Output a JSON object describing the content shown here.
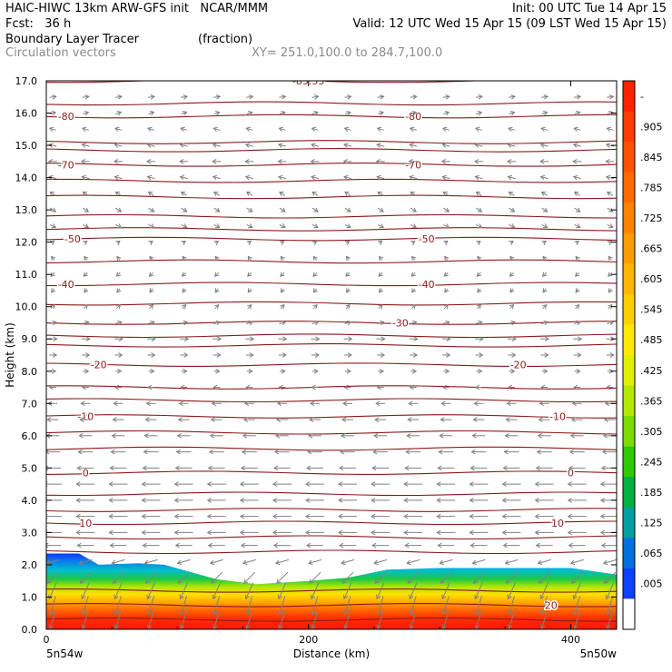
{
  "header": {
    "line1_left": "HAIC-HIWC 13km ARW-GFS init   NCAR/MMM",
    "line1_right": "Init: 00 UTC Tue 14 Apr 15",
    "line2_left": "Fcst:   36 h",
    "line2_right": "Valid: 12 UTC Wed 15 Apr 15 (09 LST Wed 15 Apr 15)",
    "field_name": "Boundary Layer Tracer",
    "field_units": "(fraction)",
    "vector_name": "Circulation vectors",
    "xy_label": "XY= 251.0,100.0 to 284.7,100.0"
  },
  "chart_data": {
    "type": "heatmap",
    "title": "Boundary Layer Tracer",
    "units": "(fraction)",
    "xlabel": "Distance (km)",
    "ylabel": "Height (km)",
    "xlim": [
      0,
      435
    ],
    "ylim": [
      0,
      17
    ],
    "xticks": [
      "0",
      "200",
      "400"
    ],
    "yticks": [
      "0.0",
      "1.0",
      "2.0",
      "3.0",
      "4.0",
      "5.0",
      "6.0",
      "7.0",
      "8.0",
      "9.0",
      "10.0",
      "11.0",
      "12.0",
      "13.0",
      "14.0",
      "15.0",
      "16.0",
      "17.0"
    ],
    "x_end_labels": {
      "left": "5n54w",
      "right": "5n50w"
    },
    "colorbar": {
      "labels": [
        "-",
        ".905",
        ".845",
        ".785",
        ".725",
        ".665",
        ".605",
        ".545",
        ".485",
        ".425",
        ".365",
        ".305",
        ".245",
        ".185",
        ".125",
        ".065",
        ".005"
      ],
      "colors": [
        "#ff2200",
        "#ff3a00",
        "#ff5200",
        "#ff6a00",
        "#ff8200",
        "#ff9c00",
        "#ffb600",
        "#ffd000",
        "#ffea00",
        "#e0f000",
        "#b4e800",
        "#7cdc00",
        "#30c800",
        "#00b040",
        "#00a0a0",
        "#0070e0",
        "#1040ff",
        "#ffffff"
      ]
    },
    "tracer_top_km": [
      [
        0,
        2.35
      ],
      [
        25,
        2.35
      ],
      [
        40,
        2.0
      ],
      [
        70,
        2.05
      ],
      [
        90,
        2.0
      ],
      [
        130,
        1.55
      ],
      [
        160,
        1.4
      ],
      [
        200,
        1.5
      ],
      [
        230,
        1.6
      ],
      [
        260,
        1.85
      ],
      [
        300,
        1.9
      ],
      [
        350,
        1.9
      ],
      [
        400,
        1.9
      ],
      [
        435,
        1.7
      ]
    ],
    "temperature_contours": [
      {
        "label": "10",
        "height_km": 3.3,
        "label_positions_km": [
          30,
          390
        ]
      },
      {
        "label": "0",
        "height_km": 4.85,
        "label_positions_km": [
          30,
          400
        ]
      },
      {
        "label": "-10",
        "height_km": 6.6,
        "label_positions_km": [
          30,
          390
        ]
      },
      {
        "label": "-20",
        "height_km": 8.2,
        "label_positions_km": [
          40,
          360
        ]
      },
      {
        "label": "-30",
        "height_km": 9.5,
        "label_positions_km": [
          270
        ]
      },
      {
        "label": "-40",
        "height_km": 10.7,
        "label_positions_km": [
          15,
          290
        ]
      },
      {
        "label": "-50",
        "height_km": 12.1,
        "label_positions_km": [
          20,
          290
        ]
      },
      {
        "label": "-70",
        "height_km": 14.4,
        "label_positions_km": [
          15,
          280
        ]
      },
      {
        "label": "-80",
        "height_km": 15.9,
        "label_positions_km": [
          15,
          280
        ]
      },
      {
        "label": "-85.55",
        "height_km": 17.0,
        "label_positions_km": [
          200
        ]
      },
      {
        "label": "20",
        "height_km": 0.75,
        "label_positions_km": [
          385
        ]
      }
    ],
    "unlabeled_contour_heights_km": [
      0.3,
      1.2,
      2.4,
      2.85,
      3.7,
      4.2,
      5.6,
      6.1,
      7.1,
      7.5,
      8.8,
      9.1,
      10.1,
      11.4,
      12.4,
      12.8,
      13.4,
      13.9,
      14.85,
      15.1,
      16.3
    ],
    "vectors": {
      "x_km": [
        5,
        30,
        55,
        80,
        105,
        130,
        155,
        180,
        205,
        230,
        255,
        280,
        305,
        330,
        355,
        380,
        405,
        430
      ],
      "rows": [
        {
          "z_km": 0.3,
          "u": -0.3,
          "w": -1.0
        },
        {
          "z_km": 0.75,
          "u": -0.3,
          "w": -1.0
        },
        {
          "z_km": 1.2,
          "u": -0.4,
          "w": -0.9
        },
        {
          "z_km": 1.6,
          "u": -0.6,
          "w": -0.6
        },
        {
          "z_km": 2.1,
          "u": -0.7,
          "w": -0.2
        },
        {
          "z_km": 2.6,
          "u": -0.9,
          "w": 0.0
        },
        {
          "z_km": 3.0,
          "u": -1.0,
          "w": 0.0
        },
        {
          "z_km": 3.5,
          "u": -1.0,
          "w": 0.0
        },
        {
          "z_km": 4.0,
          "u": -1.0,
          "w": 0.0
        },
        {
          "z_km": 4.5,
          "u": -1.0,
          "w": 0.0
        },
        {
          "z_km": 5.0,
          "u": -0.9,
          "w": 0.0
        },
        {
          "z_km": 5.5,
          "u": -0.8,
          "w": 0.0
        },
        {
          "z_km": 6.0,
          "u": -0.7,
          "w": 0.0
        },
        {
          "z_km": 6.5,
          "u": -0.6,
          "w": 0.0
        },
        {
          "z_km": 7.0,
          "u": -0.5,
          "w": 0.0
        },
        {
          "z_km": 7.5,
          "u": -0.35,
          "w": 0.0
        },
        {
          "z_km": 8.0,
          "u": 0.3,
          "w": 0.0
        },
        {
          "z_km": 8.5,
          "u": 0.4,
          "w": 0.0
        },
        {
          "z_km": 9.0,
          "u": 0.45,
          "w": 0.0
        },
        {
          "z_km": 9.5,
          "u": 0.35,
          "w": 0.1
        },
        {
          "z_km": 10.0,
          "u": 0.2,
          "w": 0.2
        },
        {
          "z_km": 10.5,
          "u": -0.15,
          "w": -0.2
        },
        {
          "z_km": 11.0,
          "u": -0.2,
          "w": -0.2
        },
        {
          "z_km": 11.5,
          "u": -0.15,
          "w": 0.2
        },
        {
          "z_km": 12.0,
          "u": 0.15,
          "w": 0.1
        },
        {
          "z_km": 12.5,
          "u": 0.3,
          "w": -0.15
        },
        {
          "z_km": 13.0,
          "u": 0.3,
          "w": -0.2
        },
        {
          "z_km": 13.5,
          "u": -0.3,
          "w": 0.2
        },
        {
          "z_km": 14.0,
          "u": -0.4,
          "w": 0.1
        },
        {
          "z_km": 14.5,
          "u": -0.45,
          "w": 0.0
        },
        {
          "z_km": 15.0,
          "u": -0.4,
          "w": 0.1
        },
        {
          "z_km": 15.5,
          "u": -0.35,
          "w": 0.1
        },
        {
          "z_km": 16.0,
          "u": 0.3,
          "w": 0.1
        },
        {
          "z_km": 16.5,
          "u": 0.35,
          "w": 0.05
        }
      ]
    },
    "colors": {
      "contour": "#8b1a1a",
      "vector": "#808080",
      "axis": "#000000"
    }
  }
}
